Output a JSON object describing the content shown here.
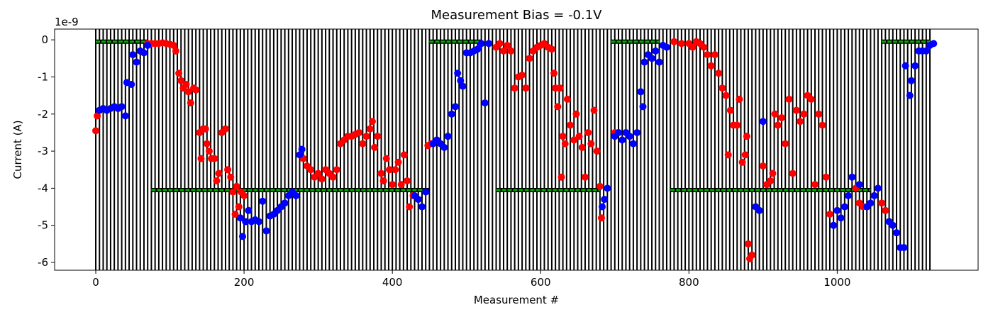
{
  "chart_data": {
    "type": "scatter",
    "title": "Measurement Bias = -0.1V",
    "xlabel": "Measurement #",
    "ylabel": "Current (A)",
    "y_offset_label": "1e-9",
    "xlim": [
      -55.5,
      1190
    ],
    "ylim": [
      -6.21,
      0.29
    ],
    "xticks": [
      0,
      200,
      400,
      600,
      800,
      1000
    ],
    "yticks": [
      -6,
      -5,
      -4,
      -3,
      -2,
      -1,
      0
    ],
    "vlines": {
      "start": 0,
      "stop": 1125,
      "step": 5,
      "color": "#000000"
    },
    "segments": {
      "color": "#00aa00",
      "edge": "#000000",
      "items": [
        {
          "x": [
            0,
            70
          ],
          "y": -0.05
        },
        {
          "x": [
            450,
            520
          ],
          "y": -0.05
        },
        {
          "x": [
            695,
            760
          ],
          "y": -0.05
        },
        {
          "x": [
            1060,
            1125
          ],
          "y": -0.05
        },
        {
          "x": [
            75,
            450
          ],
          "y": -4.05
        },
        {
          "x": [
            540,
            680
          ],
          "y": -4.05
        },
        {
          "x": [
            775,
            1045
          ],
          "y": -4.05
        }
      ]
    },
    "series": [
      {
        "color": "#ff0000",
        "x": [
          0,
          2,
          70,
          75,
          80,
          85,
          90,
          95,
          100,
          105,
          108,
          112,
          115,
          118,
          122,
          125,
          128,
          132,
          135,
          140,
          142,
          145,
          148,
          150,
          153,
          156,
          160,
          163,
          166,
          170,
          175,
          178,
          182,
          185,
          188,
          190,
          193,
          196,
          200,
          280,
          285,
          290,
          295,
          300,
          305,
          310,
          315,
          320,
          325,
          330,
          335,
          340,
          345,
          350,
          355,
          360,
          365,
          370,
          373,
          376,
          380,
          385,
          388,
          392,
          396,
          400,
          404,
          408,
          412,
          416,
          420,
          423,
          428,
          448,
          452,
          540,
          545,
          550,
          555,
          560,
          565,
          570,
          575,
          580,
          585,
          590,
          595,
          600,
          605,
          610,
          615,
          618,
          620,
          623,
          626,
          628,
          630,
          633,
          636,
          640,
          645,
          648,
          652,
          656,
          660,
          664,
          668,
          672,
          676,
          680,
          682,
          700,
          780,
          790,
          800,
          805,
          810,
          815,
          820,
          825,
          830,
          835,
          840,
          845,
          850,
          853,
          856,
          860,
          865,
          868,
          872,
          876,
          878,
          880,
          882,
          885,
          900,
          905,
          910,
          913,
          916,
          920,
          925,
          930,
          935,
          940,
          945,
          950,
          955,
          960,
          965,
          970,
          975,
          980,
          985,
          990,
          1025,
          1030,
          1035,
          1060,
          1065
        ],
        "values": [
          -2.45,
          -2.05,
          -0.1,
          -0.1,
          -0.1,
          -0.1,
          -0.08,
          -0.1,
          -0.12,
          -0.15,
          -0.3,
          -0.9,
          -1.1,
          -1.3,
          -1.2,
          -1.4,
          -1.7,
          -1.3,
          -1.35,
          -2.5,
          -3.2,
          -2.4,
          -2.4,
          -2.8,
          -3.0,
          -3.2,
          -3.2,
          -3.8,
          -3.6,
          -2.5,
          -2.4,
          -3.5,
          -3.7,
          -4.1,
          -4.7,
          -3.95,
          -4.5,
          -4.1,
          -4.2,
          -3.2,
          -3.4,
          -3.5,
          -3.7,
          -3.6,
          -3.75,
          -3.5,
          -3.6,
          -3.7,
          -3.5,
          -2.8,
          -2.7,
          -2.6,
          -2.6,
          -2.55,
          -2.5,
          -2.8,
          -2.6,
          -2.4,
          -2.2,
          -2.9,
          -2.6,
          -3.6,
          -3.8,
          -3.2,
          -3.5,
          -3.9,
          -3.5,
          -3.3,
          -3.9,
          -3.1,
          -3.8,
          -4.5,
          -4.2,
          -2.85,
          -2.8,
          -0.2,
          -0.1,
          -0.3,
          -0.15,
          -0.3,
          -1.3,
          -1.0,
          -0.95,
          -1.3,
          -0.5,
          -0.3,
          -0.2,
          -0.15,
          -0.1,
          -0.2,
          -0.25,
          -0.9,
          -1.3,
          -1.8,
          -1.3,
          -3.7,
          -2.6,
          -2.8,
          -1.6,
          -2.3,
          -2.7,
          -2.0,
          -2.6,
          -2.9,
          -3.7,
          -2.5,
          -2.8,
          -1.9,
          -3.0,
          -3.95,
          -4.8,
          -2.5,
          -0.05,
          -0.1,
          -0.1,
          -0.2,
          -0.05,
          -0.1,
          -0.2,
          -0.4,
          -0.7,
          -0.4,
          -0.9,
          -1.3,
          -1.5,
          -3.1,
          -1.9,
          -2.3,
          -2.3,
          -1.6,
          -3.3,
          -3.1,
          -2.6,
          -5.5,
          -5.9,
          -5.8,
          -3.4,
          -3.9,
          -3.8,
          -3.6,
          -2.0,
          -2.3,
          -2.1,
          -2.8,
          -1.6,
          -3.6,
          -1.9,
          -2.2,
          -2.0,
          -1.5,
          -1.6,
          -3.9,
          -2.0,
          -2.3,
          -3.7,
          -4.7,
          -4.0,
          -4.4,
          -4.5,
          -4.4,
          -4.6
        ]
      },
      {
        "color": "#0000ff",
        "x": [
          5,
          10,
          15,
          20,
          25,
          30,
          35,
          40,
          42,
          48,
          50,
          55,
          60,
          65,
          70,
          195,
          198,
          202,
          206,
          210,
          215,
          220,
          225,
          230,
          235,
          240,
          245,
          250,
          255,
          260,
          265,
          270,
          275,
          278,
          430,
          435,
          440,
          445,
          455,
          460,
          465,
          470,
          475,
          480,
          485,
          488,
          492,
          495,
          500,
          505,
          510,
          515,
          520,
          525,
          530,
          683,
          686,
          690,
          700,
          705,
          710,
          715,
          720,
          725,
          730,
          735,
          738,
          740,
          745,
          750,
          755,
          760,
          765,
          770,
          890,
          895,
          900,
          995,
          1000,
          1005,
          1010,
          1015,
          1020,
          1030,
          1040,
          1045,
          1050,
          1055,
          1070,
          1075,
          1080,
          1085,
          1090,
          1092,
          1098,
          1100,
          1105,
          1110,
          1115,
          1120,
          1125,
          1130
        ],
        "values": [
          -1.9,
          -1.85,
          -1.9,
          -1.85,
          -1.8,
          -1.85,
          -1.8,
          -2.05,
          -1.15,
          -1.2,
          -0.4,
          -0.6,
          -0.3,
          -0.35,
          -0.15,
          -4.8,
          -5.3,
          -4.9,
          -4.6,
          -4.9,
          -4.85,
          -4.9,
          -4.35,
          -5.15,
          -4.75,
          -4.7,
          -4.6,
          -4.5,
          -4.4,
          -4.2,
          -4.1,
          -4.2,
          -3.1,
          -2.95,
          -4.2,
          -4.3,
          -4.5,
          -4.1,
          -2.8,
          -2.7,
          -2.8,
          -2.9,
          -2.6,
          -2.0,
          -1.8,
          -0.9,
          -1.1,
          -1.25,
          -0.35,
          -0.35,
          -0.3,
          -0.25,
          -0.1,
          -1.7,
          -0.1,
          -4.5,
          -4.3,
          -4.0,
          -2.6,
          -2.5,
          -2.7,
          -2.5,
          -2.6,
          -2.8,
          -2.5,
          -1.4,
          -1.8,
          -0.6,
          -0.4,
          -0.5,
          -0.3,
          -0.6,
          -0.15,
          -0.2,
          -4.5,
          -4.6,
          -2.2,
          -5.0,
          -4.6,
          -4.8,
          -4.5,
          -4.2,
          -3.7,
          -3.9,
          -4.5,
          -4.4,
          -4.2,
          -4.0,
          -4.9,
          -5.0,
          -5.2,
          -5.6,
          -5.6,
          -0.7,
          -1.5,
          -1.1,
          -0.7,
          -0.3,
          -0.3,
          -0.3,
          -0.15,
          -0.1
        ]
      }
    ]
  }
}
